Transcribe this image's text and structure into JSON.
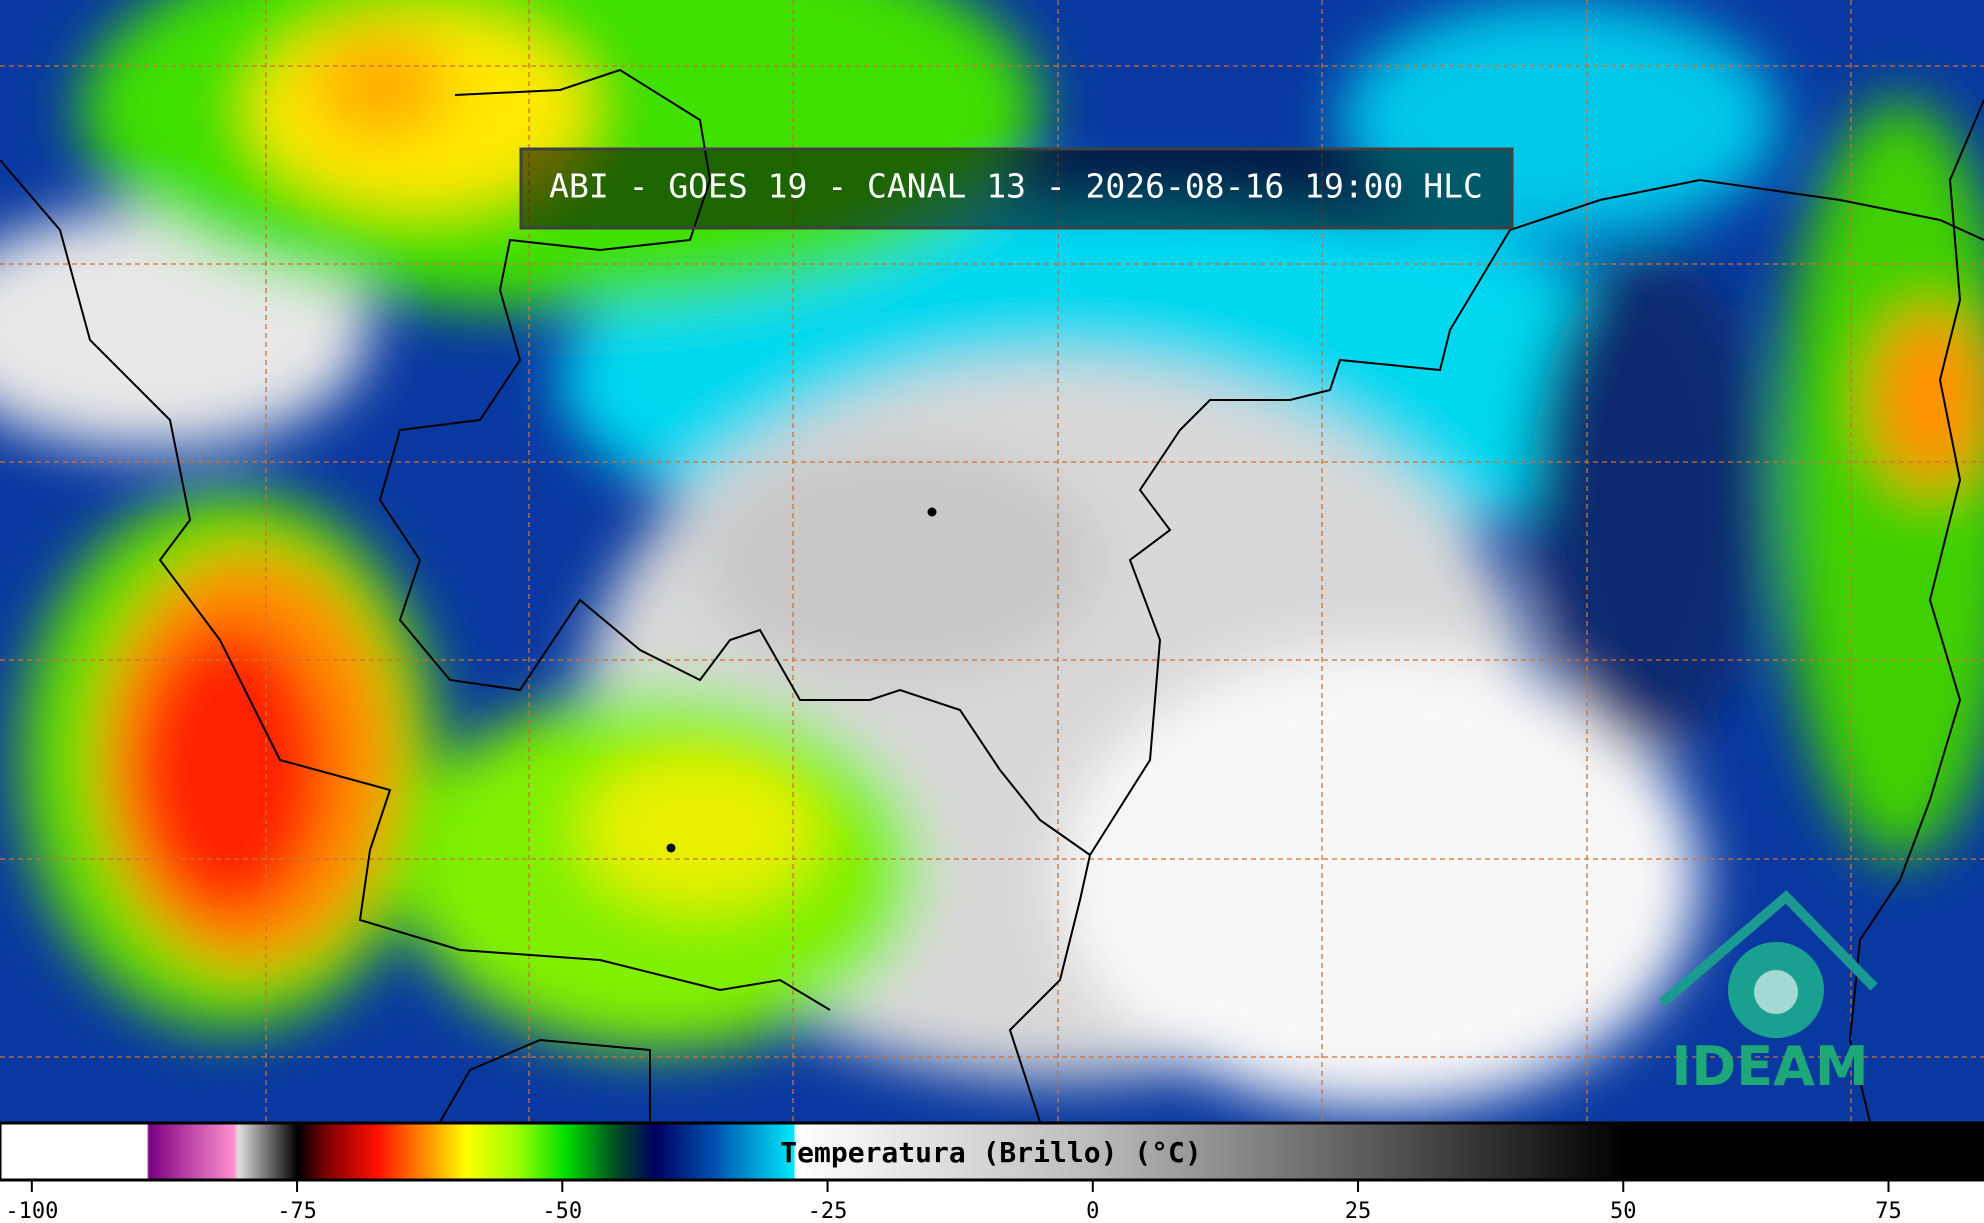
{
  "header": {
    "title": "ABI - GOES 19 - CANAL 13 - 2026-08-16 19:00 HLC"
  },
  "colorbar": {
    "label": "Temperatura (Brillo) (°C)",
    "lim": [
      -103,
      84
    ],
    "ticks": [
      -100,
      -75,
      -50,
      -25,
      0,
      25,
      50,
      75
    ]
  },
  "logo": {
    "text": "IDEAM"
  }
}
